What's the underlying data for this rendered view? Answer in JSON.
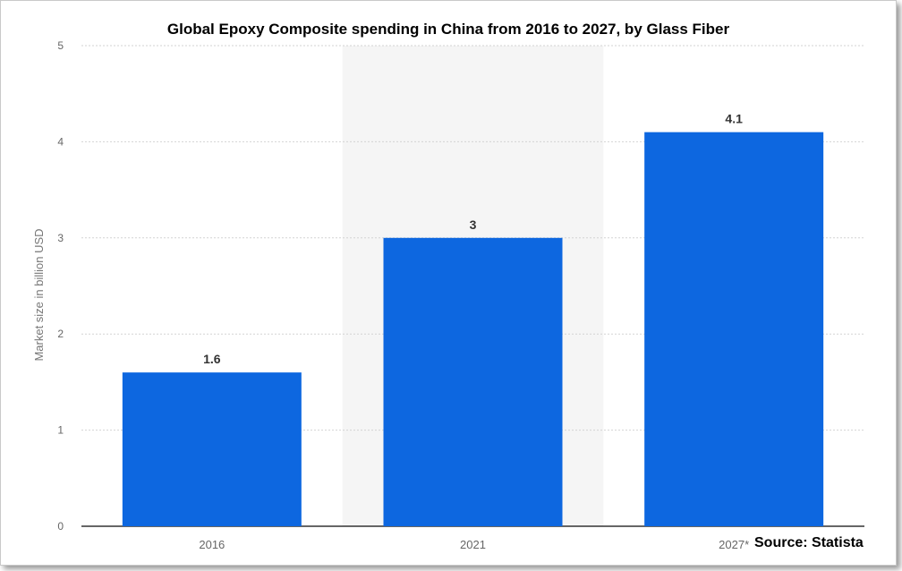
{
  "chart_data": {
    "type": "bar",
    "title": "Global Epoxy Composite spending in China from 2016 to 2027, by Glass Fiber",
    "categories": [
      "2016",
      "2021",
      "2027*"
    ],
    "values": [
      1.6,
      3,
      4.1
    ],
    "data_labels": [
      "1.6",
      "3",
      "4.1"
    ],
    "ylabel": "Market size in billion USD",
    "xlabel": "",
    "ylim": [
      0,
      5
    ],
    "yticks": [
      "0",
      "1",
      "2",
      "3",
      "4",
      "5"
    ],
    "grid": true,
    "highlighted_category": "2021",
    "bar_color": "#0d67e0",
    "grid_color": "#d3d3d3",
    "highlight_color": "#f5f5f5"
  },
  "source_label": "Source: Statista"
}
